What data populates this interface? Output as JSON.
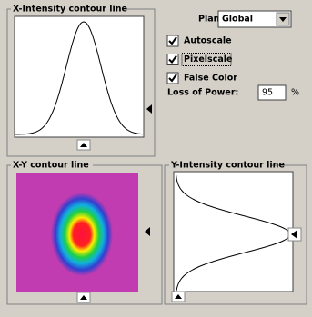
{
  "x_panel": {
    "title": "X-Intensity contour line"
  },
  "controls": {
    "plane_label": "Plane:",
    "plane_value": "Global",
    "checkboxes": [
      {
        "label": "Autoscale",
        "checked": true
      },
      {
        "label": "Pixelscale",
        "checked": true
      },
      {
        "label": "False Color",
        "checked": true
      }
    ],
    "loss_label": "Loss of Power:",
    "loss_value": "95",
    "loss_unit": "%"
  },
  "xy_panel": {
    "title": "X-Y contour line"
  },
  "y_panel": {
    "title": "Y-Intensity contour line"
  }
}
